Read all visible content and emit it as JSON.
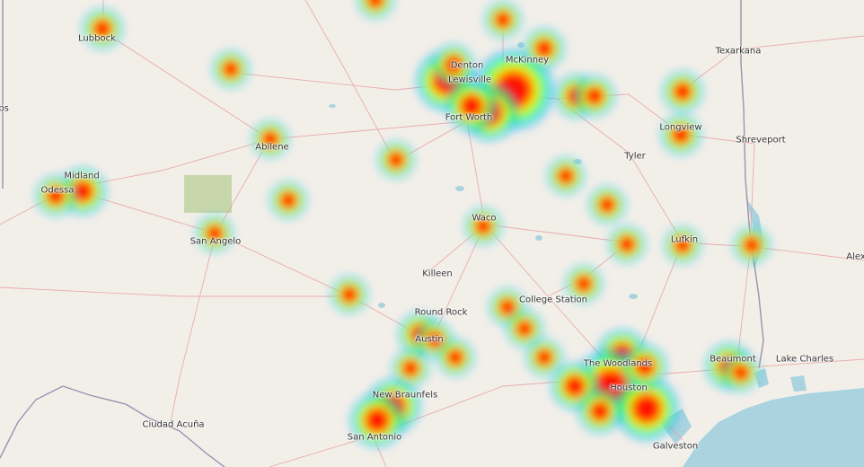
{
  "map": {
    "colors": {
      "land": "#f2efe9",
      "water": "#aad3df",
      "park": "#c8d7ab",
      "road": "#e9a0a0",
      "border": "#9e90b0"
    },
    "heat_gradient": [
      "#0000ff",
      "#00ffff",
      "#00ff00",
      "#ffff00",
      "#ff0000"
    ],
    "cities": [
      {
        "id": "lubbock",
        "label": "Lubbock"
      },
      {
        "id": "texarkana",
        "label": "Texarkana"
      },
      {
        "id": "bs",
        "label": "bs"
      },
      {
        "id": "abilene",
        "label": "Abilene"
      },
      {
        "id": "fort-worth",
        "label": "Fort Worth"
      },
      {
        "id": "denton",
        "label": "Denton"
      },
      {
        "id": "mckinney",
        "label": "McKinney"
      },
      {
        "id": "lewisville",
        "label": "Lewisville"
      },
      {
        "id": "longview",
        "label": "Longview"
      },
      {
        "id": "shreveport",
        "label": "Shreveport"
      },
      {
        "id": "tyler",
        "label": "Tyler"
      },
      {
        "id": "midland",
        "label": "Midland"
      },
      {
        "id": "odessa",
        "label": "Odessa"
      },
      {
        "id": "san-angelo",
        "label": "San Angelo"
      },
      {
        "id": "waco",
        "label": "Waco"
      },
      {
        "id": "lufkin",
        "label": "Lufkin"
      },
      {
        "id": "alex",
        "label": "Alex"
      },
      {
        "id": "killeen",
        "label": "Killeen"
      },
      {
        "id": "college-station",
        "label": "College Station"
      },
      {
        "id": "round-rock",
        "label": "Round Rock"
      },
      {
        "id": "austin",
        "label": "Austin"
      },
      {
        "id": "the-woodlands",
        "label": "The Woodlands"
      },
      {
        "id": "houston",
        "label": "Houston"
      },
      {
        "id": "beaumont",
        "label": "Beaumont"
      },
      {
        "id": "lake-charles",
        "label": "Lake Charles"
      },
      {
        "id": "new-braunfels",
        "label": "New Braunfels"
      },
      {
        "id": "san-antonio",
        "label": "San Antonio"
      },
      {
        "id": "ciudad-acuna",
        "label": "Ciudad Acuña"
      },
      {
        "id": "galveston",
        "label": "Galveston"
      }
    ],
    "heat_spots": [
      {
        "id": "lubbock",
        "intensity": 0.8
      },
      {
        "id": "north-top",
        "intensity": 0.8
      },
      {
        "id": "sherman",
        "intensity": 0.8
      },
      {
        "id": "wichita-area",
        "intensity": 0.8
      },
      {
        "id": "denton",
        "intensity": 1.0
      },
      {
        "id": "dallas",
        "intensity": 1.0
      },
      {
        "id": "mckinney",
        "intensity": 0.9
      },
      {
        "id": "rockwall",
        "intensity": 0.9
      },
      {
        "id": "abilene",
        "intensity": 0.8
      },
      {
        "id": "longview",
        "intensity": 0.8
      },
      {
        "id": "midland-odessa",
        "intensity": 1.0
      },
      {
        "id": "san-angelo",
        "intensity": 0.8
      },
      {
        "id": "waco",
        "intensity": 0.8
      },
      {
        "id": "lufkin",
        "intensity": 0.8
      },
      {
        "id": "east-texas",
        "intensity": 0.8
      },
      {
        "id": "college-station",
        "intensity": 0.8
      },
      {
        "id": "central-west",
        "intensity": 0.8
      },
      {
        "id": "austin",
        "intensity": 0.9
      },
      {
        "id": "houston",
        "intensity": 1.0
      },
      {
        "id": "beaumont",
        "intensity": 0.9
      },
      {
        "id": "san-antonio",
        "intensity": 1.0
      }
    ]
  }
}
